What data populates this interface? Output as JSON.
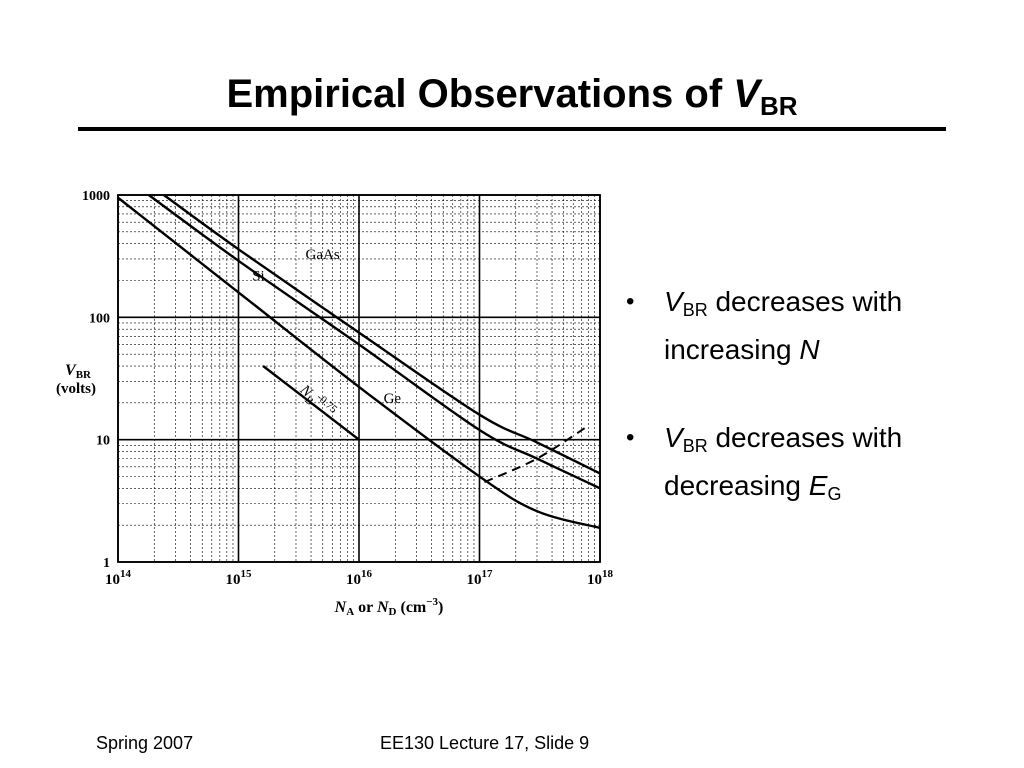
{
  "slide": {
    "title_text": "Empirical Observations of ",
    "title_var": "V",
    "title_sub": "BR",
    "bullets": [
      {
        "var": "V",
        "sub": "BR",
        "text": " decreases with increasing ",
        "tail_var": "N",
        "tail_sub": ""
      },
      {
        "var": "V",
        "sub": "BR",
        "text": " decreases with decreasing ",
        "tail_var": "E",
        "tail_sub": "G"
      }
    ],
    "footer_left": "Spring 2007",
    "footer_center": "EE130 Lecture 17, Slide 9"
  },
  "chart_data": {
    "type": "line",
    "xscale": "log",
    "yscale": "log",
    "xlim": [
      100000000000000.0,
      1e+18
    ],
    "ylim": [
      1,
      1000
    ],
    "x_ticks": [
      {
        "value": 100000000000000.0,
        "base": "10",
        "exp": "14"
      },
      {
        "value": 1000000000000000.0,
        "base": "10",
        "exp": "15"
      },
      {
        "value": 1e+16,
        "base": "10",
        "exp": "16"
      },
      {
        "value": 1e+17,
        "base": "10",
        "exp": "17"
      },
      {
        "value": 1e+18,
        "base": "10",
        "exp": "18"
      }
    ],
    "y_ticks": [
      {
        "value": 1,
        "label": "1"
      },
      {
        "value": 10,
        "label": "10"
      },
      {
        "value": 100,
        "label": "100"
      },
      {
        "value": 1000,
        "label": "1000"
      }
    ],
    "xlabel": {
      "var1": "N",
      "sub1": "A",
      "mid": " or ",
      "var2": "N",
      "sub2": "D",
      "unit": " (cm",
      "unit_exp": "−3",
      "unit_end": ")"
    },
    "ylabel": {
      "var": "V",
      "sub": "BR",
      "line2": "(volts)"
    },
    "grid": true,
    "series": [
      {
        "name": "GaAs",
        "style": "solid",
        "x": [
          240000000000000.0,
          1000000000000000.0,
          1e+16,
          1e+17,
          3e+17,
          1e+18
        ],
        "y": [
          1000,
          360,
          75,
          16,
          9.5,
          5.3
        ]
      },
      {
        "name": "Si",
        "style": "solid",
        "x": [
          180000000000000.0,
          1000000000000000.0,
          1e+16,
          1e+17,
          3e+17,
          1e+18
        ],
        "y": [
          1000,
          290,
          60,
          12,
          7,
          4
        ]
      },
      {
        "name": "Ge",
        "style": "solid",
        "x": [
          100000000000000.0,
          1000000000000000.0,
          1e+16,
          1e+17,
          3e+17,
          1e+18
        ],
        "y": [
          950,
          160,
          27,
          5,
          2.6,
          1.9
        ]
      },
      {
        "name": "",
        "style": "dashed",
        "x": [
          1.1e+17,
          3e+17,
          8e+17
        ],
        "y": [
          4.5,
          7,
          13
        ]
      },
      {
        "name": "",
        "style": "solid",
        "x": [
          1600000000000000.0,
          1e+16
        ],
        "y": [
          40,
          10
        ]
      }
    ],
    "annotations": [
      {
        "text": "GaAs",
        "x": 3600000000000000.0,
        "y": 300
      },
      {
        "text": "Si",
        "x": 1300000000000000.0,
        "y": 200
      },
      {
        "text": "Ge",
        "x": 1.6e+16,
        "y": 20
      },
      {
        "text_var": "N",
        "text_sub": "B",
        "text_exp": "-0.75",
        "x": 3200000000000000.0,
        "y": 25,
        "rotate": 42
      }
    ]
  }
}
